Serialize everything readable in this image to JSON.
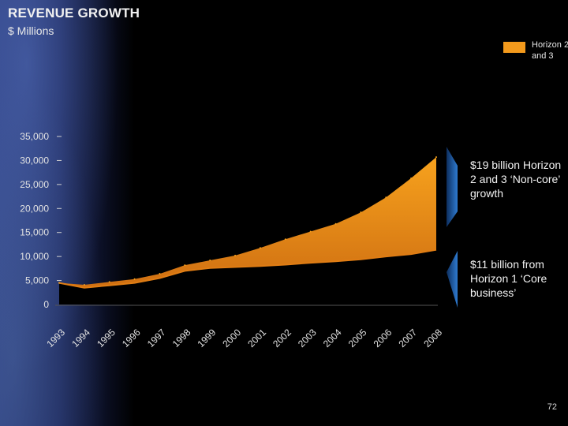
{
  "header": {
    "title": "REVENUE GROWTH",
    "subtitle": "$ Millions"
  },
  "legend": {
    "label": "Horizon 2 and 3",
    "color": "#f39a1c"
  },
  "annotations": {
    "upper": "$19 billion Horizon 2 and 3 ‘Non-core’ growth",
    "lower": "$11 billion from Horizon 1 ‘Core business’"
  },
  "page_number": "72",
  "colors": {
    "area_top": "#f7a21d",
    "area_bottom": "#cf6f12",
    "bracket": "#1f5fa8"
  },
  "chart_data": {
    "type": "area",
    "title": "REVENUE GROWTH",
    "ylabel": "$ Millions",
    "categories": [
      "1993",
      "1994",
      "1995",
      "1996",
      "1997",
      "1998",
      "1999",
      "2000",
      "2001",
      "2002",
      "2003",
      "2004",
      "2005",
      "2006",
      "2007",
      "2008"
    ],
    "y_ticks": [
      "35,000",
      "30,000",
      "25,000",
      "20,000",
      "15,000",
      "10,000",
      "5,000",
      "0"
    ],
    "ylim": [
      0,
      35000
    ],
    "series": [
      {
        "name": "Horizon 1",
        "values": [
          4500,
          3500,
          4000,
          4500,
          5500,
          7000,
          7600,
          7800,
          8000,
          8300,
          8700,
          9000,
          9400,
          10000,
          10500,
          11400
        ]
      },
      {
        "name": "Horizon 2 and 3",
        "values": [
          0,
          600,
          700,
          800,
          900,
          1200,
          1600,
          2400,
          3800,
          5300,
          6500,
          7800,
          9800,
          12300,
          15800,
          19300
        ]
      }
    ],
    "totals": [
      4500,
      4100,
      4700,
      5300,
      6400,
      8200,
      9200,
      10200,
      11800,
      13600,
      15200,
      16800,
      19200,
      22300,
      26300,
      30700
    ],
    "grid": false
  }
}
